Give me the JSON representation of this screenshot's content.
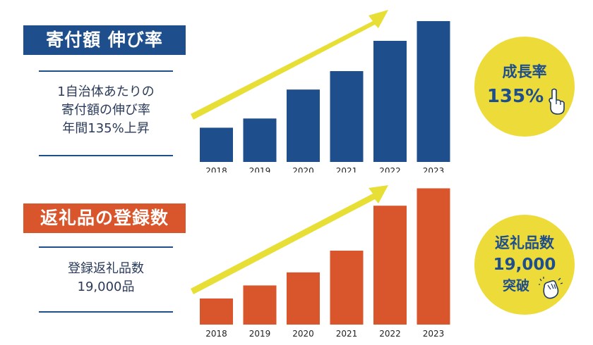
{
  "panels": [
    {
      "title": "寄付額 伸び率",
      "description": [
        "1自治体あたりの",
        "寄付額の伸び率",
        "年間135%上昇"
      ],
      "badge": {
        "line1": "成長率",
        "line2": "135%"
      },
      "icon": "pointing-hand-icon"
    },
    {
      "title": "返礼品の登録数",
      "description": [
        "登録返礼品数",
        "19,000品"
      ],
      "badge": {
        "line1": "返礼品数",
        "line2": "19,000",
        "line3": "突破"
      },
      "icon": "clapping-hand-icon"
    }
  ],
  "colors": {
    "blue": "#1f4e8c",
    "orange": "#d9552b",
    "yellow": "#eddb3a",
    "arrow": "#e7df35"
  },
  "chart_data": [
    {
      "type": "bar",
      "categories": [
        "2018",
        "2019",
        "2020",
        "2021",
        "2022",
        "2023"
      ],
      "values": [
        26,
        33,
        55,
        69,
        92,
        107
      ],
      "ylim": [
        0,
        115
      ],
      "grid": false,
      "color": "#1f4e8c"
    },
    {
      "type": "bar",
      "categories": [
        "2018",
        "2019",
        "2020",
        "2021",
        "2022",
        "2023"
      ],
      "values": [
        18,
        27,
        36,
        51,
        82,
        94
      ],
      "ylim": [
        0,
        102
      ],
      "grid": false,
      "color": "#d9552b"
    }
  ]
}
